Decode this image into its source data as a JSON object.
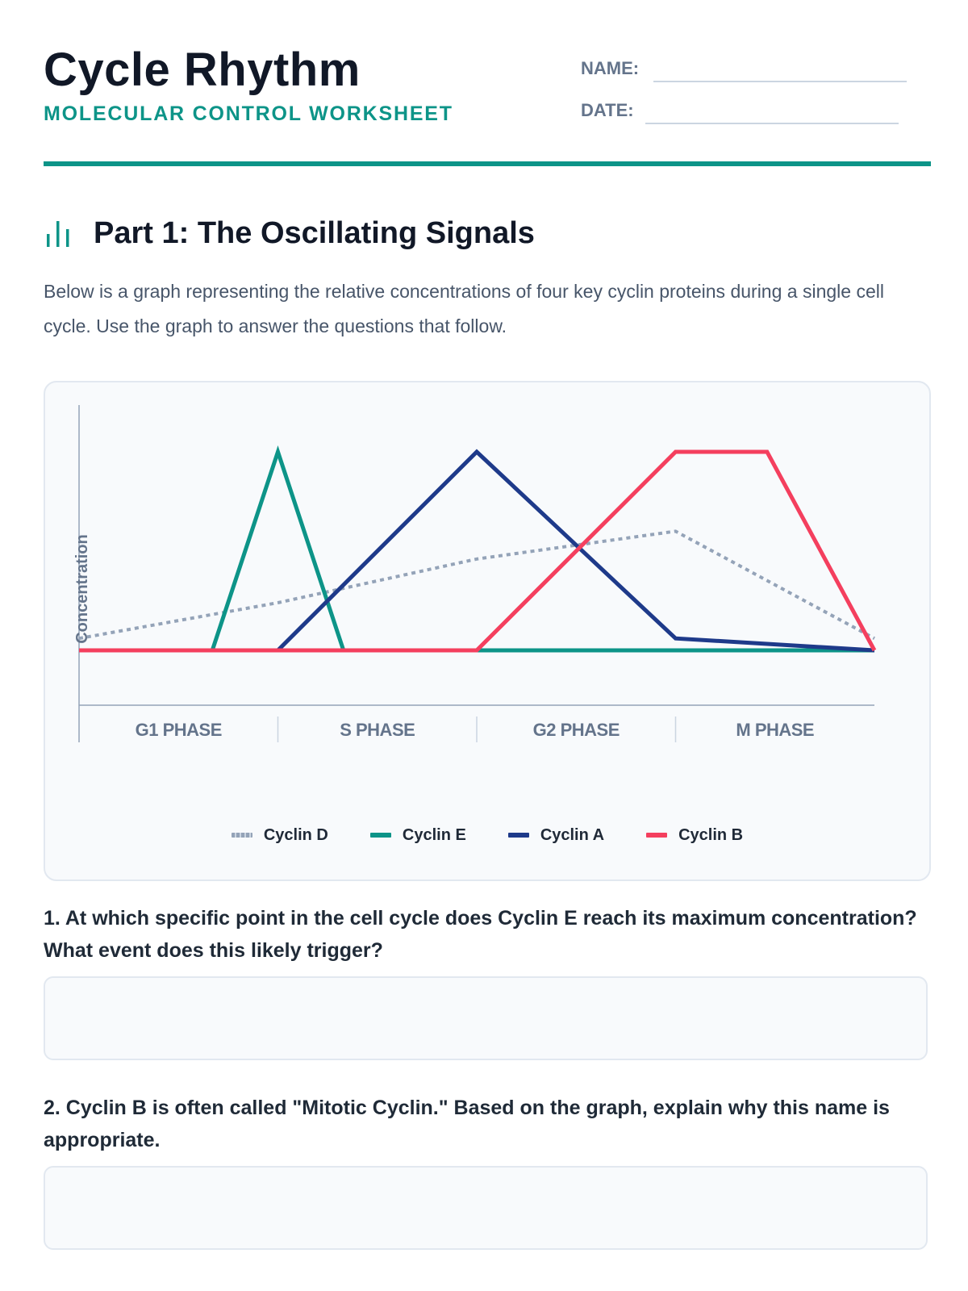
{
  "header": {
    "title": "Cycle Rhythm",
    "subtitle": "MOLECULAR CONTROL WORKSHEET",
    "name_label": "NAME:",
    "date_label": "DATE:"
  },
  "colors": {
    "accent": "#0d9488",
    "cyclin_d": "#94a3b8",
    "cyclin_e": "#0d9488",
    "cyclin_a": "#1e3a8a",
    "cyclin_b": "#f43f5e"
  },
  "section": {
    "icon": "bar-chart-icon",
    "title": "Part 1: The Oscillating Signals",
    "intro": "Below is a graph representing the relative concentrations of four key cyclin proteins during a single cell cycle. Use the graph to answer the questions that follow."
  },
  "chart_data": {
    "type": "line",
    "ylabel": "Concentration",
    "categories": [
      "G1 PHASE",
      "S PHASE",
      "G2 PHASE",
      "M PHASE"
    ],
    "xlim": [
      0,
      4
    ],
    "ylim": [
      0,
      1
    ],
    "grid": false,
    "legend_position": "bottom",
    "series": [
      {
        "name": "Cyclin D",
        "style": "dotted",
        "color": "#94a3b8",
        "points": [
          [
            0,
            0.06
          ],
          [
            1,
            0.24
          ],
          [
            2,
            0.46
          ],
          [
            3,
            0.6
          ],
          [
            4,
            0.06
          ]
        ]
      },
      {
        "name": "Cyclin E",
        "style": "solid",
        "color": "#0d9488",
        "points": [
          [
            0,
            0
          ],
          [
            0.67,
            0
          ],
          [
            1,
            1
          ],
          [
            1.33,
            0
          ],
          [
            4,
            0
          ]
        ]
      },
      {
        "name": "Cyclin A",
        "style": "solid",
        "color": "#1e3a8a",
        "points": [
          [
            0,
            0
          ],
          [
            1,
            0
          ],
          [
            2,
            1
          ],
          [
            3,
            0.06
          ],
          [
            4,
            0
          ]
        ]
      },
      {
        "name": "Cyclin B",
        "style": "solid",
        "color": "#f43f5e",
        "points": [
          [
            0,
            0
          ],
          [
            2,
            0
          ],
          [
            3,
            1
          ],
          [
            3.46,
            1
          ],
          [
            4,
            0
          ]
        ]
      }
    ]
  },
  "questions": [
    {
      "text": "1. At which specific point in the cell cycle does Cyclin E reach its maximum concentration? What event does this likely trigger?"
    },
    {
      "text": "2. Cyclin B is often called \"Mitotic Cyclin.\" Based on the graph, explain why this name is appropriate."
    }
  ]
}
